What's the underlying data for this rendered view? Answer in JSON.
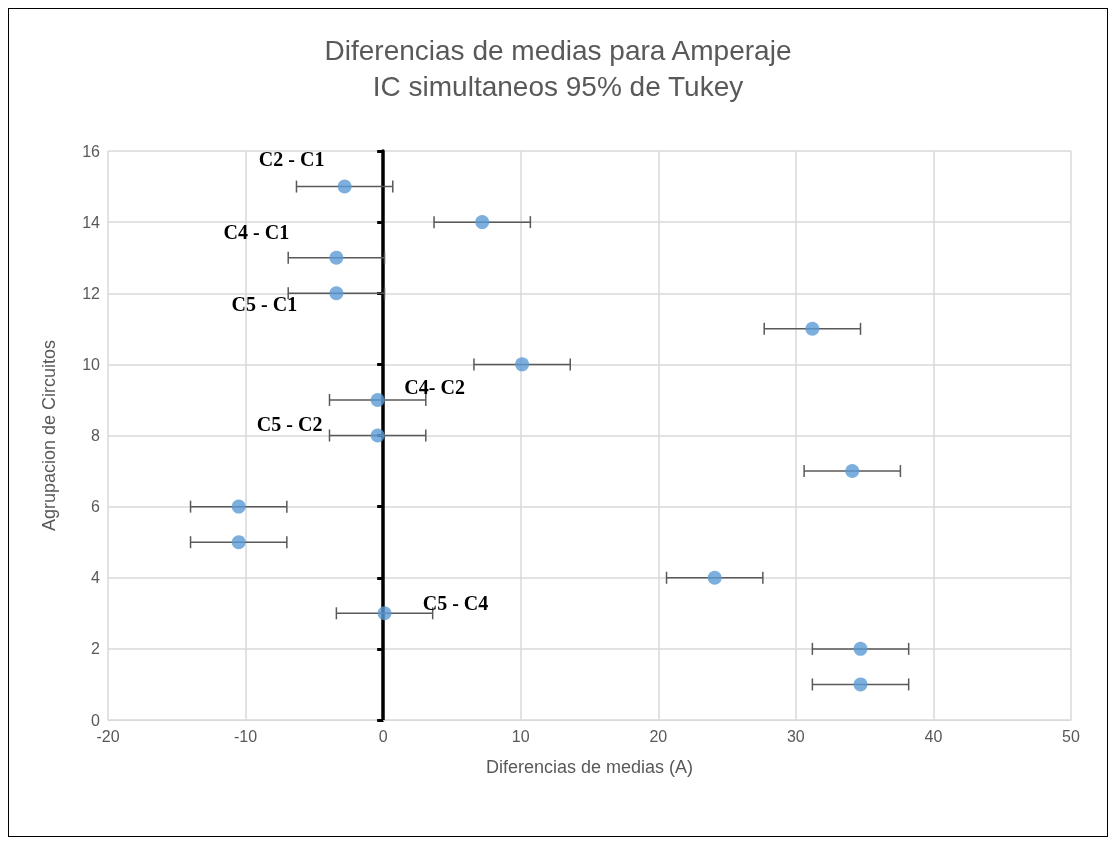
{
  "chart_data": {
    "type": "scatter",
    "title": "Diferencias de medias para Amperaje",
    "subtitle": "IC simultaneos 95% de Tukey",
    "xlabel": "Diferencias de medias (A)",
    "ylabel": "Agrupacion de Circuitos",
    "x": [
      -2.8,
      7.2,
      -3.4,
      -3.4,
      31.2,
      10.1,
      -0.4,
      -0.4,
      34.1,
      -10.5,
      -10.5,
      24.1,
      0.1,
      34.7,
      34.7
    ],
    "values": [
      15,
      14,
      13,
      12,
      11,
      10,
      9,
      8,
      7,
      6,
      5,
      4,
      3,
      2,
      1
    ],
    "xerrors": [
      3.5,
      3.5,
      3.5,
      3.5,
      3.5,
      3.5,
      3.5,
      3.5,
      3.5,
      3.5,
      3.5,
      3.5,
      3.5,
      3.5,
      3.5
    ],
    "color": "#5b9bd5",
    "marker": "circle",
    "grid": true,
    "xlim": [
      -20,
      50
    ],
    "xticks": [
      -20,
      -10,
      0,
      10,
      20,
      30,
      40,
      50
    ],
    "ylim": [
      0,
      16
    ],
    "yticks": [
      0,
      2,
      4,
      6,
      8,
      10,
      12,
      14,
      16
    ],
    "annotations": [
      {
        "text": "C2 - C1",
        "x": -2.8,
        "y": 15
      },
      {
        "text": "C4 - C1",
        "x": -3.4,
        "y": 13
      },
      {
        "text": "C5 - C1",
        "x": -3.4,
        "y": 12
      },
      {
        "text": "C4- C2",
        "x": -0.4,
        "y": 9
      },
      {
        "text": "C5 - C2",
        "x": -0.4,
        "y": 8
      },
      {
        "text": "C5 - C4",
        "x": 0.1,
        "y": 3
      }
    ]
  }
}
